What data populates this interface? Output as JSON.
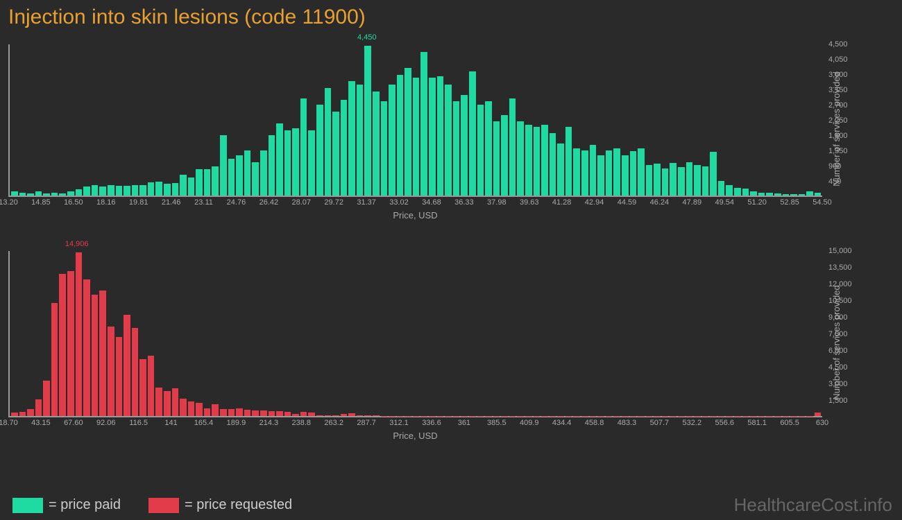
{
  "title": "Injection into skin lesions (code 11900)",
  "watermark": "HealthcareCost.info",
  "legend": {
    "paid": {
      "label": "= price paid",
      "color": "#1fdba2"
    },
    "requested": {
      "label": "= price requested",
      "color": "#e23b4a"
    }
  },
  "chart_paid": {
    "type": "histogram",
    "color": "#1fdba2",
    "background": "#2a2a2a",
    "axis_color": "#999",
    "text_color": "#aaa",
    "x_label": "Price, USD",
    "y_label": "Number of services provided",
    "peak": {
      "value": 4450,
      "label": "4,450",
      "index": 44
    },
    "ymax": 4500,
    "y_ticks": [
      "450",
      "900",
      "1,350",
      "1,800",
      "2,250",
      "2,700",
      "3,150",
      "3,600",
      "4,050",
      "4,500"
    ],
    "x_ticks": [
      "13.20",
      "14.85",
      "16.50",
      "18.16",
      "19.81",
      "21.46",
      "23.11",
      "24.76",
      "26.42",
      "28.07",
      "29.72",
      "31.37",
      "33.02",
      "34.68",
      "36.33",
      "37.98",
      "39.63",
      "41.28",
      "42.94",
      "44.59",
      "46.24",
      "47.89",
      "49.54",
      "51.20",
      "52.85",
      "54.50"
    ],
    "values": [
      120,
      80,
      60,
      120,
      60,
      80,
      60,
      120,
      180,
      260,
      300,
      260,
      320,
      280,
      280,
      320,
      300,
      400,
      420,
      360,
      380,
      620,
      540,
      780,
      780,
      860,
      1800,
      1100,
      1200,
      1350,
      1000,
      1350,
      1800,
      2150,
      1950,
      2000,
      2900,
      1950,
      2700,
      3200,
      2500,
      2850,
      3400,
      3300,
      4450,
      3100,
      2800,
      3300,
      3600,
      3800,
      3500,
      4280,
      3500,
      3550,
      3300,
      2800,
      3000,
      3700,
      2700,
      2800,
      2200,
      2400,
      2900,
      2200,
      2100,
      2050,
      2100,
      1850,
      1550,
      2050,
      1400,
      1350,
      1500,
      1200,
      1350,
      1400,
      1200,
      1320,
      1400,
      900,
      950,
      800,
      980,
      850,
      1000,
      900,
      870,
      1300,
      440,
      300,
      220,
      200,
      120,
      90,
      80,
      70,
      50,
      40,
      40,
      120,
      80
    ]
  },
  "chart_requested": {
    "type": "histogram",
    "color": "#e23b4a",
    "background": "#2a2a2a",
    "axis_color": "#999",
    "text_color": "#aaa",
    "x_label": "Price, USD",
    "y_label": "Number of services provided",
    "peak": {
      "value": 14906,
      "label": "14,906",
      "index": 8
    },
    "ymax": 15000,
    "y_ticks": [
      "1,500",
      "3,000",
      "4,500",
      "6,000",
      "7,500",
      "9,000",
      "10,500",
      "12,000",
      "13,500",
      "15,000"
    ],
    "x_ticks": [
      "18.70",
      "43.15",
      "67.60",
      "92.06",
      "116.5",
      "141",
      "165.4",
      "189.9",
      "214.3",
      "238.8",
      "263.2",
      "287.7",
      "312.1",
      "336.6",
      "361",
      "385.5",
      "409.9",
      "434.4",
      "458.8",
      "483.3",
      "507.7",
      "532.2",
      "556.6",
      "581.1",
      "605.5",
      "630"
    ],
    "values": [
      300,
      400,
      600,
      1500,
      3200,
      10300,
      12900,
      13200,
      14906,
      12400,
      11000,
      11400,
      8100,
      7200,
      9200,
      8000,
      5200,
      5500,
      2600,
      2300,
      2500,
      1600,
      1350,
      1200,
      700,
      1100,
      650,
      600,
      700,
      550,
      500,
      500,
      450,
      450,
      400,
      200,
      350,
      320,
      80,
      70,
      60,
      200,
      250,
      60,
      50,
      40,
      30,
      30,
      20,
      20,
      30,
      20,
      20,
      15,
      15,
      10,
      10,
      10,
      10,
      10,
      10,
      10,
      10,
      10,
      10,
      10,
      10,
      10,
      10,
      10,
      10,
      10,
      10,
      10,
      10,
      10,
      10,
      10,
      10,
      10,
      10,
      10,
      10,
      10,
      10,
      10,
      10,
      10,
      10,
      10,
      10,
      10,
      10,
      10,
      10,
      10,
      10,
      10,
      10,
      10,
      300
    ]
  }
}
